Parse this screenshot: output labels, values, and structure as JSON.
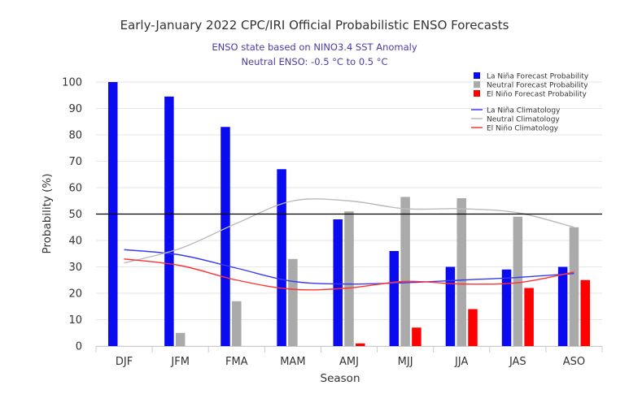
{
  "chart_data": {
    "type": "bar",
    "title": "Early-January 2022 CPC/IRI Official Probabilistic ENSO Forecasts",
    "subtitle_lines": [
      "ENSO state based on NINO3.4 SST Anomaly",
      "Neutral ENSO: -0.5 °C to 0.5 °C"
    ],
    "xlabel": "Season",
    "ylabel": "Probability (%)",
    "ylim": [
      0,
      100
    ],
    "yticks": [
      0,
      10,
      20,
      30,
      40,
      50,
      60,
      70,
      80,
      90,
      100
    ],
    "categories": [
      "DJF",
      "JFM",
      "FMA",
      "MAM",
      "AMJ",
      "MJJ",
      "JJA",
      "JAS",
      "ASO"
    ],
    "series": [
      {
        "name": "La Niña Forecast Probability",
        "kind": "bar",
        "color": "#0b0bf0",
        "values": [
          100,
          94.5,
          83,
          67,
          48,
          36,
          30,
          29,
          30
        ]
      },
      {
        "name": "Neutral Forecast Probability",
        "kind": "bar",
        "color": "#aaaaaa",
        "values": [
          0,
          5,
          17,
          33,
          51,
          56.5,
          56,
          49,
          45
        ]
      },
      {
        "name": "El Niño Forecast Probability",
        "kind": "bar",
        "color": "#ff0000",
        "values": [
          0,
          0,
          0,
          0,
          1,
          7,
          14,
          22,
          25
        ]
      },
      {
        "name": "La Niña Climatology",
        "kind": "line",
        "color": "#3a3af0",
        "values": [
          36.5,
          34.5,
          29.5,
          24.5,
          23.5,
          24,
          25,
          26,
          27.5
        ]
      },
      {
        "name": "Neutral Climatology",
        "kind": "line",
        "color": "#bbbbbb",
        "values": [
          31.5,
          37,
          46.5,
          55,
          55,
          52,
          52,
          50.5,
          45
        ]
      },
      {
        "name": "El Niño Climatology",
        "kind": "line",
        "color": "#ff3333",
        "values": [
          33,
          30.5,
          25,
          21.5,
          22,
          24.5,
          23.5,
          24,
          28
        ]
      }
    ],
    "reference_line": {
      "value": 50,
      "color": "#000000"
    },
    "grid": true,
    "legend_position": "top-right"
  }
}
